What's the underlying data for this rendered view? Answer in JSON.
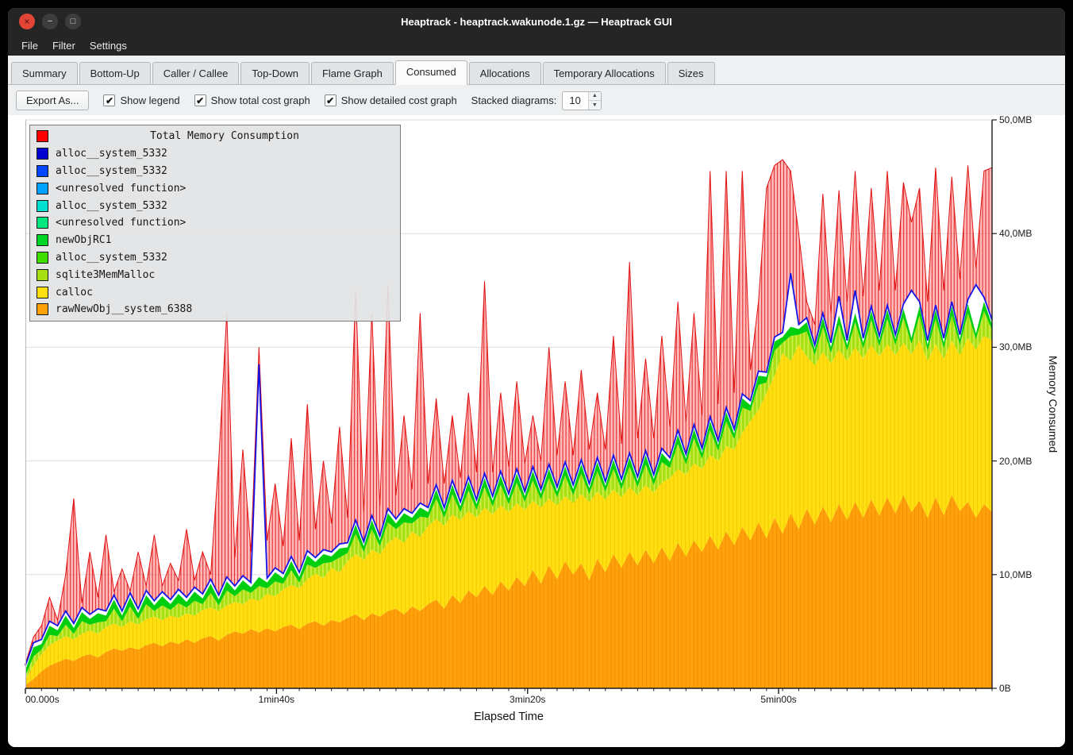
{
  "window": {
    "title": "Heaptrack - heaptrack.wakunode.1.gz — Heaptrack GUI",
    "controls": {
      "close": "×",
      "minimize": "−",
      "maximize": "□"
    }
  },
  "menu": {
    "items": [
      {
        "label": "File"
      },
      {
        "label": "Filter"
      },
      {
        "label": "Settings"
      }
    ]
  },
  "tabs": [
    {
      "label": "Summary",
      "active": false
    },
    {
      "label": "Bottom-Up",
      "active": false
    },
    {
      "label": "Caller / Callee",
      "active": false
    },
    {
      "label": "Top-Down",
      "active": false
    },
    {
      "label": "Flame Graph",
      "active": false
    },
    {
      "label": "Consumed",
      "active": true
    },
    {
      "label": "Allocations",
      "active": false
    },
    {
      "label": "Temporary Allocations",
      "active": false
    },
    {
      "label": "Sizes",
      "active": false
    }
  ],
  "toolbar": {
    "export_label": "Export As...",
    "check_glyph": "✔",
    "checkboxes": [
      {
        "label": "Show legend",
        "checked": true
      },
      {
        "label": "Show total cost graph",
        "checked": true
      },
      {
        "label": "Show detailed cost graph",
        "checked": true
      }
    ],
    "stacked_label": "Stacked diagrams:",
    "stacked_value": "10",
    "spin_up": "▲",
    "spin_down": "▼"
  },
  "legend": {
    "title": "Total Memory Consumption",
    "title_color": "#ff0000",
    "entries": [
      {
        "label": "alloc__system_5332",
        "color": "#0000d0"
      },
      {
        "label": "alloc__system_5332",
        "color": "#0045ff"
      },
      {
        "label": "<unresolved function>",
        "color": "#00a2ff"
      },
      {
        "label": "alloc__system_5332",
        "color": "#00e0d0"
      },
      {
        "label": "<unresolved function>",
        "color": "#00e87d"
      },
      {
        "label": "newObjRC1",
        "color": "#00d426"
      },
      {
        "label": "alloc__system_5332",
        "color": "#3fdc00"
      },
      {
        "label": "sqlite3MemMalloc",
        "color": "#a6e010"
      },
      {
        "label": "calloc",
        "color": "#ffdf0f"
      },
      {
        "label": "rawNewObj__system_6388",
        "color": "#ffa10a"
      }
    ]
  },
  "axes": {
    "y_labels": [
      "0B",
      "10,0MB",
      "20,0MB",
      "30,0MB",
      "40,0MB",
      "50,0MB"
    ],
    "y_title": "Memory Consumed",
    "x_labels": [
      "00.000s",
      "1min40s",
      "3min20s",
      "5min00s"
    ],
    "x_title": "Elapsed Time"
  },
  "chart_data": {
    "type": "area",
    "stacked": true,
    "unit": "MB",
    "ylim": [
      0,
      50
    ],
    "x_seconds": {
      "start": 0,
      "end": 385,
      "samples": 121
    },
    "x_tick_seconds": [
      0,
      100,
      200,
      300
    ],
    "series": [
      {
        "name": "rawNewObj__system_6388",
        "color": "#ffa10a",
        "mode": "top",
        "values": [
          0.3,
          0.8,
          1.5,
          2.0,
          2.3,
          2.6,
          2.4,
          2.8,
          3.0,
          2.7,
          3.2,
          3.5,
          3.3,
          3.6,
          3.4,
          3.8,
          4.0,
          3.7,
          4.1,
          3.9,
          4.3,
          4.0,
          4.4,
          4.6,
          4.2,
          4.7,
          5.0,
          4.8,
          5.2,
          4.9,
          5.3,
          5.0,
          5.4,
          5.6,
          5.2,
          5.7,
          5.9,
          5.5,
          6.0,
          5.8,
          6.2,
          6.5,
          6.0,
          6.6,
          6.3,
          6.8,
          7.0,
          6.5,
          7.2,
          6.8,
          7.4,
          7.8,
          7.0,
          8.2,
          7.5,
          8.6,
          8.0,
          9.0,
          8.2,
          9.4,
          8.6,
          9.8,
          9.0,
          10.4,
          9.2,
          10.8,
          9.6,
          11.2,
          10.0,
          11.0,
          9.5,
          11.4,
          10.2,
          11.8,
          10.6,
          12.0,
          10.8,
          12.2,
          11.0,
          12.4,
          11.2,
          12.8,
          11.6,
          13.0,
          12.0,
          13.4,
          12.2,
          13.8,
          12.6,
          14.2,
          13.0,
          14.6,
          13.2,
          15.0,
          13.6,
          15.4,
          14.0,
          15.8,
          14.4,
          16.0,
          14.6,
          16.2,
          14.8,
          16.4,
          15.0,
          16.6,
          15.2,
          16.8,
          15.4,
          17.0,
          15.5,
          16.5,
          15.0,
          16.8,
          15.2,
          17.0,
          15.6,
          16.4,
          15.0,
          16.2,
          15.5
        ]
      },
      {
        "name": "calloc",
        "color": "#ffdf0f",
        "mode": "top",
        "values": [
          0.8,
          2.0,
          3.0,
          3.8,
          4.2,
          4.6,
          4.3,
          4.8,
          5.1,
          4.8,
          5.4,
          5.7,
          5.4,
          5.9,
          5.6,
          6.1,
          6.3,
          6.0,
          6.4,
          6.2,
          6.6,
          6.4,
          6.9,
          7.1,
          6.8,
          7.3,
          7.6,
          7.4,
          7.9,
          7.7,
          8.3,
          8.1,
          8.7,
          9.1,
          8.8,
          9.6,
          10.1,
          9.7,
          10.6,
          10.2,
          11.2,
          11.8,
          11.3,
          12.2,
          11.8,
          12.8,
          13.3,
          12.8,
          13.8,
          13.3,
          14.3,
          14.9,
          14.3,
          15.3,
          14.8,
          15.6,
          15.0,
          15.9,
          15.3,
          16.1,
          15.5,
          16.3,
          15.7,
          16.5,
          15.9,
          16.7,
          16.1,
          16.9,
          16.3,
          17.1,
          16.4,
          17.3,
          16.6,
          17.5,
          16.8,
          17.7,
          17.0,
          17.9,
          17.2,
          18.1,
          18.5,
          19.3,
          18.8,
          19.8,
          19.3,
          20.5,
          20.0,
          21.3,
          21.0,
          22.5,
          23.5,
          24.5,
          26.0,
          27.5,
          29.5,
          28.8,
          30.2,
          29.2,
          28.4,
          29.6,
          28.6,
          29.8,
          28.8,
          30.0,
          29.0,
          30.2,
          29.2,
          30.3,
          29.3,
          30.4,
          29.4,
          30.6,
          28.8,
          30.3,
          29.0,
          30.6,
          29.3,
          30.8,
          29.8,
          31.0,
          30.6
        ]
      },
      {
        "name": "sqlite3MemMalloc",
        "color": "#a6e010",
        "mode": "thickness",
        "values": [
          0.3,
          0.8,
          0.4,
          0.9,
          0.4,
          1.0,
          0.5,
          1.1,
          0.5,
          1.0,
          0.5,
          1.3,
          0.5,
          1.3,
          0.5,
          1.3,
          0.5,
          1.3,
          0.5,
          1.3,
          0.5,
          1.3,
          0.5,
          1.3,
          0.5,
          1.3,
          0.5,
          1.3,
          0.5,
          1.3,
          0.5,
          1.3,
          0.5,
          1.3,
          0.5,
          1.3,
          0.5,
          1.3,
          0.5,
          1.3,
          0.7,
          1.8,
          0.7,
          1.8,
          0.7,
          1.8,
          0.7,
          1.8,
          0.7,
          1.8,
          0.7,
          1.8,
          0.7,
          1.8,
          0.7,
          1.8,
          0.7,
          1.8,
          0.7,
          1.8,
          0.7,
          1.8,
          0.7,
          1.8,
          0.7,
          1.8,
          0.7,
          1.8,
          0.7,
          1.8,
          0.7,
          1.8,
          0.7,
          1.8,
          0.7,
          1.8,
          0.7,
          1.8,
          0.7,
          1.8,
          0.9,
          2.2,
          0.9,
          2.2,
          0.9,
          2.2,
          0.9,
          2.2,
          0.9,
          2.2,
          0.9,
          2.2,
          0.9,
          2.2,
          0.9,
          2.2,
          0.9,
          2.2,
          0.9,
          2.2,
          0.9,
          2.2,
          0.9,
          2.2,
          0.9,
          2.2,
          0.9,
          2.2,
          0.9,
          2.2,
          0.9,
          2.2,
          0.9,
          2.2,
          0.9,
          2.2,
          0.9,
          2.2,
          0.9,
          2.2,
          0.9
        ]
      },
      {
        "name": "newObjRC1 + alloc__system_5332",
        "color": "#00cf10",
        "mode": "thickness",
        "values": [
          0.5,
          0.8,
          0.5,
          0.8,
          0.5,
          0.8,
          0.5,
          0.8,
          0.5,
          0.8,
          0.5,
          0.8,
          0.5,
          0.8,
          0.5,
          0.8,
          0.5,
          0.8,
          0.5,
          0.8,
          0.5,
          0.8,
          0.5,
          0.8,
          0.5,
          0.8,
          0.5,
          0.8,
          0.5,
          0.8,
          0.5,
          0.8,
          0.5,
          0.8,
          0.5,
          0.8,
          0.5,
          0.8,
          0.5,
          0.8,
          0.5,
          0.8,
          0.5,
          0.8,
          0.5,
          0.8,
          0.5,
          0.8,
          0.5,
          0.8,
          0.5,
          0.8,
          0.5,
          0.8,
          0.5,
          0.8,
          0.5,
          0.8,
          0.5,
          0.8,
          0.5,
          0.8,
          0.5,
          0.8,
          0.5,
          0.8,
          0.5,
          0.8,
          0.5,
          0.8,
          0.5,
          0.8,
          0.5,
          0.8,
          0.5,
          0.8,
          0.5,
          0.8,
          0.5,
          0.8,
          0.5,
          0.8,
          0.5,
          0.8,
          0.5,
          0.8,
          0.5,
          0.8,
          0.5,
          0.8,
          0.5,
          0.8,
          0.5,
          0.8,
          0.5,
          0.8,
          0.5,
          0.8,
          0.5,
          0.8,
          0.5,
          0.8,
          0.5,
          0.8,
          0.5,
          0.8,
          0.5,
          0.8,
          0.5,
          0.8,
          0.5,
          0.8,
          0.5,
          0.8,
          0.5,
          0.8,
          0.5,
          0.8,
          0.5,
          0.8,
          0.5
        ]
      },
      {
        "name": "alloc__system_5332",
        "color": "#1414e8",
        "mode": "line-offset",
        "base_thickness": 0.4,
        "spikes": [
          [
            29,
            28.5
          ],
          [
            95,
            36.5
          ],
          [
            101,
            34.5
          ],
          [
            103,
            35.0
          ],
          [
            110,
            35.0
          ],
          [
            118,
            35.5
          ]
        ]
      },
      {
        "name": "Total Memory Consumption",
        "color": "#ff2020",
        "mode": "total-top",
        "values": [
          2,
          4.5,
          5.5,
          8,
          6,
          10,
          16.7,
          7.5,
          12,
          8,
          13.5,
          8.5,
          10.5,
          8.5,
          12,
          9,
          13.5,
          9,
          11,
          9.5,
          14,
          9.5,
          12,
          10,
          20,
          33,
          11.5,
          21,
          12,
          30,
          13,
          18,
          12.5,
          22,
          13,
          25,
          14,
          20,
          14.5,
          23,
          15,
          35,
          15.5,
          33,
          16,
          35.5,
          17,
          24,
          17.5,
          33,
          18,
          25.5,
          18,
          24,
          18.5,
          26,
          19,
          35.8,
          19,
          26,
          19.5,
          27,
          19.8,
          24,
          20,
          30,
          20.5,
          27,
          20.5,
          28,
          21,
          26,
          21,
          31,
          21.5,
          37.5,
          22,
          29,
          22,
          31,
          23,
          34,
          23.5,
          33,
          24,
          45.5,
          25,
          45.5,
          26,
          45.5,
          28,
          34,
          44,
          46,
          46.5,
          45.5,
          40,
          34,
          32,
          43.5,
          33,
          43.8,
          34,
          45.5,
          34.5,
          44,
          35,
          45.5,
          35,
          44.5,
          41,
          44,
          34,
          45.8,
          35,
          45,
          36,
          46,
          37,
          45.5,
          45.8
        ]
      }
    ]
  }
}
